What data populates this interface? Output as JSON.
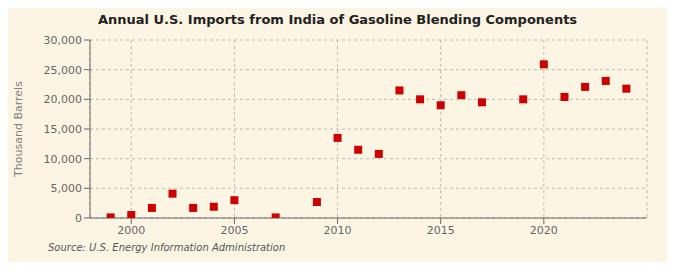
{
  "chart_data": {
    "type": "scatter",
    "title": "Annual U.S. Imports from India of Gasoline Blending Components",
    "y_label": "Thousand Barrels",
    "annotations": [
      "Source: U.S. Energy Information Administration"
    ],
    "x": [
      1999,
      2000,
      2001,
      2002,
      2003,
      2004,
      2005,
      2007,
      2009,
      2010,
      2011,
      2012,
      2013,
      2014,
      2015,
      2016,
      2017,
      2019,
      2020,
      2021,
      2022,
      2023,
      2024
    ],
    "values": [
      100,
      500,
      1700,
      4100,
      1700,
      1900,
      3000,
      100,
      2700,
      13500,
      11500,
      10800,
      21500,
      20000,
      19000,
      20700,
      19500,
      20000,
      25900,
      20400,
      22100,
      23100,
      21800
    ],
    "color": "#cc0000",
    "marker": "square",
    "xlim": [
      1998,
      2025
    ],
    "ylim": [
      0,
      30000
    ],
    "xticks": [
      2000,
      2005,
      2010,
      2015,
      2020
    ],
    "yticks": [
      0,
      {
        "value": 5000,
        "label": "5,000"
      },
      {
        "value": 10000,
        "label": "10,000"
      },
      {
        "value": 15000,
        "label": "15,000"
      },
      {
        "value": 20000,
        "label": "20,000"
      },
      {
        "value": 25000,
        "label": "25,000"
      },
      {
        "value": 30000,
        "label": "30,000"
      }
    ],
    "grid": true
  }
}
